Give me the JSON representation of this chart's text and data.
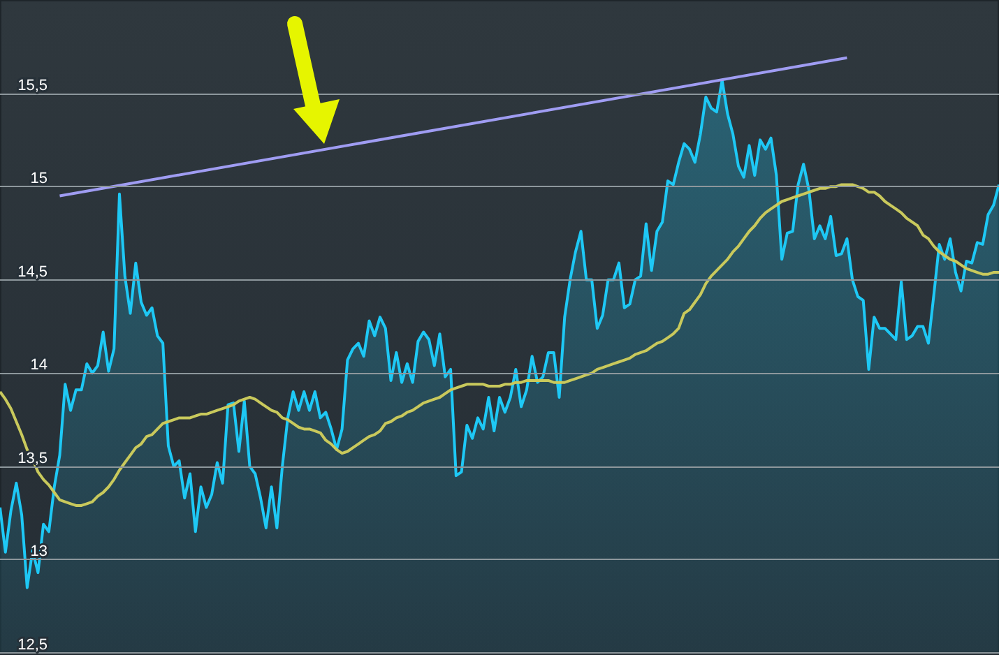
{
  "chart_data": {
    "type": "line",
    "categories": [
      null,
      null,
      null,
      null,
      null,
      null,
      null,
      null,
      null,
      null,
      null,
      null,
      null,
      null,
      null,
      null,
      null,
      null,
      null,
      null,
      null,
      null,
      null,
      null,
      null,
      null,
      null,
      null,
      null,
      null,
      null,
      null,
      null,
      null,
      null,
      null,
      null,
      null,
      null,
      null,
      null,
      null,
      null,
      null,
      null,
      null,
      null,
      null,
      null,
      null,
      null,
      null,
      null,
      null,
      null,
      null,
      null,
      null,
      null,
      null,
      null,
      null,
      null,
      null,
      null,
      null,
      null,
      null,
      null,
      null,
      null,
      null,
      null,
      null,
      null,
      null,
      null,
      null,
      null,
      null,
      null,
      null,
      null,
      null,
      null,
      null,
      null,
      null,
      null,
      null,
      null,
      null,
      null,
      null,
      null,
      null,
      null,
      null,
      null,
      null,
      null,
      null,
      null,
      null,
      null,
      null,
      null,
      null,
      null,
      null,
      null,
      null,
      null,
      null,
      null,
      null,
      null,
      null,
      null,
      null,
      null,
      null,
      null,
      null,
      null,
      null,
      null,
      null,
      null,
      null,
      null,
      null,
      null,
      null,
      null,
      null,
      null,
      null,
      null,
      null,
      null,
      null,
      null,
      null,
      null,
      null,
      null,
      null,
      null,
      null,
      null,
      null,
      null,
      null,
      null,
      null,
      null,
      null,
      null,
      null,
      null,
      null,
      null,
      null,
      null,
      null,
      null,
      null,
      null,
      null,
      null,
      null,
      null,
      null,
      null,
      null,
      null,
      null,
      null,
      null,
      null,
      null,
      null,
      null,
      null
    ],
    "series": [
      {
        "type": "area",
        "color": "#1ec8f5",
        "values": [
          13.28,
          13.04,
          13.26,
          13.41,
          13.24,
          12.85,
          13.05,
          12.93,
          13.19,
          13.15,
          13.39,
          13.56,
          13.94,
          13.8,
          13.91,
          13.91,
          14.05,
          14.0,
          14.04,
          14.22,
          14.01,
          14.13,
          14.96,
          14.52,
          14.32,
          14.59,
          14.38,
          14.31,
          14.35,
          14.2,
          14.16,
          13.61,
          13.5,
          13.53,
          13.33,
          13.46,
          13.15,
          13.39,
          13.28,
          13.35,
          13.52,
          13.41,
          13.83,
          13.84,
          13.58,
          13.85,
          13.5,
          13.46,
          13.33,
          13.17,
          13.39,
          13.17,
          13.5,
          13.76,
          13.9,
          13.8,
          13.9,
          13.8,
          13.9,
          13.76,
          13.79,
          13.7,
          13.59,
          13.7,
          14.07,
          14.13,
          14.16,
          14.09,
          14.28,
          14.2,
          14.3,
          14.24,
          13.96,
          14.11,
          13.95,
          14.05,
          13.95,
          14.17,
          14.22,
          14.18,
          14.04,
          14.21,
          13.98,
          14.02,
          13.45,
          13.47,
          13.72,
          13.65,
          13.76,
          13.7,
          13.87,
          13.69,
          13.87,
          13.79,
          13.87,
          14.02,
          13.82,
          13.91,
          14.09,
          13.95,
          13.98,
          14.11,
          14.11,
          13.87,
          14.3,
          14.5,
          14.65,
          14.76,
          14.5,
          14.5,
          14.24,
          14.31,
          14.5,
          14.5,
          14.59,
          14.35,
          14.37,
          14.5,
          14.52,
          14.8,
          14.55,
          14.76,
          14.81,
          15.03,
          15.01,
          15.13,
          15.23,
          15.2,
          15.13,
          15.28,
          15.48,
          15.42,
          15.4,
          15.57,
          15.39,
          15.28,
          15.11,
          15.05,
          15.22,
          15.06,
          15.25,
          15.2,
          15.26,
          15.06,
          14.61,
          14.75,
          14.76,
          15.01,
          15.12,
          14.98,
          14.72,
          14.79,
          14.72,
          14.84,
          14.63,
          14.64,
          14.72,
          14.5,
          14.41,
          14.39,
          14.02,
          14.3,
          14.24,
          14.24,
          14.21,
          14.18,
          14.49,
          14.18,
          14.2,
          14.25,
          14.25,
          14.16,
          14.42,
          14.69,
          14.61,
          14.72,
          14.54,
          14.44,
          14.6,
          14.59,
          14.7,
          14.69,
          14.85,
          14.9,
          15.01
        ]
      },
      {
        "type": "line",
        "color": "#c9c95c",
        "values": [
          13.9,
          13.86,
          13.81,
          13.74,
          13.67,
          13.59,
          13.54,
          13.47,
          13.43,
          13.4,
          13.36,
          13.32,
          13.31,
          13.3,
          13.29,
          13.29,
          13.3,
          13.31,
          13.34,
          13.36,
          13.39,
          13.43,
          13.48,
          13.52,
          13.56,
          13.6,
          13.62,
          13.66,
          13.67,
          13.7,
          13.73,
          13.74,
          13.75,
          13.76,
          13.76,
          13.76,
          13.77,
          13.78,
          13.78,
          13.79,
          13.8,
          13.81,
          13.82,
          13.83,
          13.85,
          13.86,
          13.87,
          13.86,
          13.84,
          13.82,
          13.8,
          13.79,
          13.76,
          13.75,
          13.73,
          13.71,
          13.7,
          13.7,
          13.69,
          13.68,
          13.64,
          13.62,
          13.59,
          13.57,
          13.58,
          13.6,
          13.62,
          13.64,
          13.66,
          13.67,
          13.69,
          13.73,
          13.74,
          13.76,
          13.77,
          13.79,
          13.8,
          13.82,
          13.84,
          13.85,
          13.86,
          13.87,
          13.89,
          13.91,
          13.92,
          13.93,
          13.94,
          13.94,
          13.94,
          13.94,
          13.93,
          13.93,
          13.93,
          13.94,
          13.94,
          13.95,
          13.95,
          13.96,
          13.96,
          13.96,
          13.96,
          13.96,
          13.95,
          13.95,
          13.95,
          13.96,
          13.97,
          13.98,
          13.99,
          14.0,
          14.02,
          14.03,
          14.04,
          14.05,
          14.06,
          14.07,
          14.08,
          14.1,
          14.11,
          14.12,
          14.14,
          14.16,
          14.17,
          14.19,
          14.21,
          14.24,
          14.32,
          14.34,
          14.38,
          14.42,
          14.48,
          14.52,
          14.55,
          14.58,
          14.61,
          14.65,
          14.68,
          14.72,
          14.76,
          14.79,
          14.83,
          14.86,
          14.88,
          14.9,
          14.92,
          14.93,
          14.94,
          14.95,
          14.96,
          14.97,
          14.98,
          14.99,
          14.99,
          15.0,
          15.0,
          15.01,
          15.01,
          15.01,
          15.0,
          14.99,
          14.97,
          14.97,
          14.95,
          14.92,
          14.9,
          14.88,
          14.86,
          14.83,
          14.81,
          14.79,
          14.74,
          14.72,
          14.68,
          14.65,
          14.63,
          14.61,
          14.6,
          14.58,
          14.56,
          14.55,
          14.54,
          14.53,
          14.53,
          14.54,
          14.54
        ]
      },
      {
        "type": "line",
        "color": "#9f9cf2",
        "values": [
          null,
          null,
          null,
          null,
          null,
          null,
          null,
          null,
          null,
          null,
          null,
          14.95,
          null,
          null,
          null,
          null,
          null,
          null,
          null,
          null,
          null,
          null,
          null,
          null,
          null,
          null,
          null,
          null,
          null,
          null,
          null,
          null,
          null,
          null,
          null,
          null,
          null,
          null,
          null,
          null,
          null,
          null,
          null,
          null,
          null,
          null,
          null,
          null,
          null,
          null,
          null,
          null,
          null,
          null,
          null,
          null,
          null,
          null,
          null,
          null,
          null,
          null,
          null,
          null,
          null,
          null,
          null,
          null,
          null,
          null,
          null,
          null,
          null,
          null,
          null,
          null,
          null,
          null,
          null,
          null,
          null,
          null,
          null,
          null,
          null,
          null,
          null,
          null,
          null,
          null,
          null,
          null,
          null,
          null,
          null,
          null,
          null,
          null,
          null,
          null,
          null,
          null,
          null,
          null,
          null,
          null,
          null,
          null,
          null,
          null,
          null,
          null,
          null,
          null,
          null,
          null,
          null,
          null,
          null,
          null,
          null,
          null,
          null,
          null,
          null,
          null,
          null,
          null,
          null,
          null,
          null,
          null,
          null,
          null,
          null,
          null,
          null,
          null,
          null,
          null,
          null,
          null,
          null,
          null,
          null,
          null,
          null,
          null,
          null,
          null,
          null,
          null,
          null,
          null,
          null,
          null,
          15.69,
          null,
          null,
          null,
          null,
          null,
          null,
          null,
          null,
          null,
          null,
          null,
          null,
          null,
          null,
          null,
          null,
          null,
          null,
          null,
          null,
          null,
          null,
          null,
          null,
          null,
          null,
          null,
          null
        ]
      }
    ],
    "ylim": [
      12.5,
      16
    ],
    "yticks": [
      {
        "value": 12.5,
        "label": "12,5"
      },
      13,
      {
        "value": 13.5,
        "label": "13,5"
      },
      14,
      {
        "value": 14.5,
        "label": "14,5"
      },
      15,
      {
        "value": 15.5,
        "label": "15,5"
      }
    ],
    "grid": "y"
  }
}
